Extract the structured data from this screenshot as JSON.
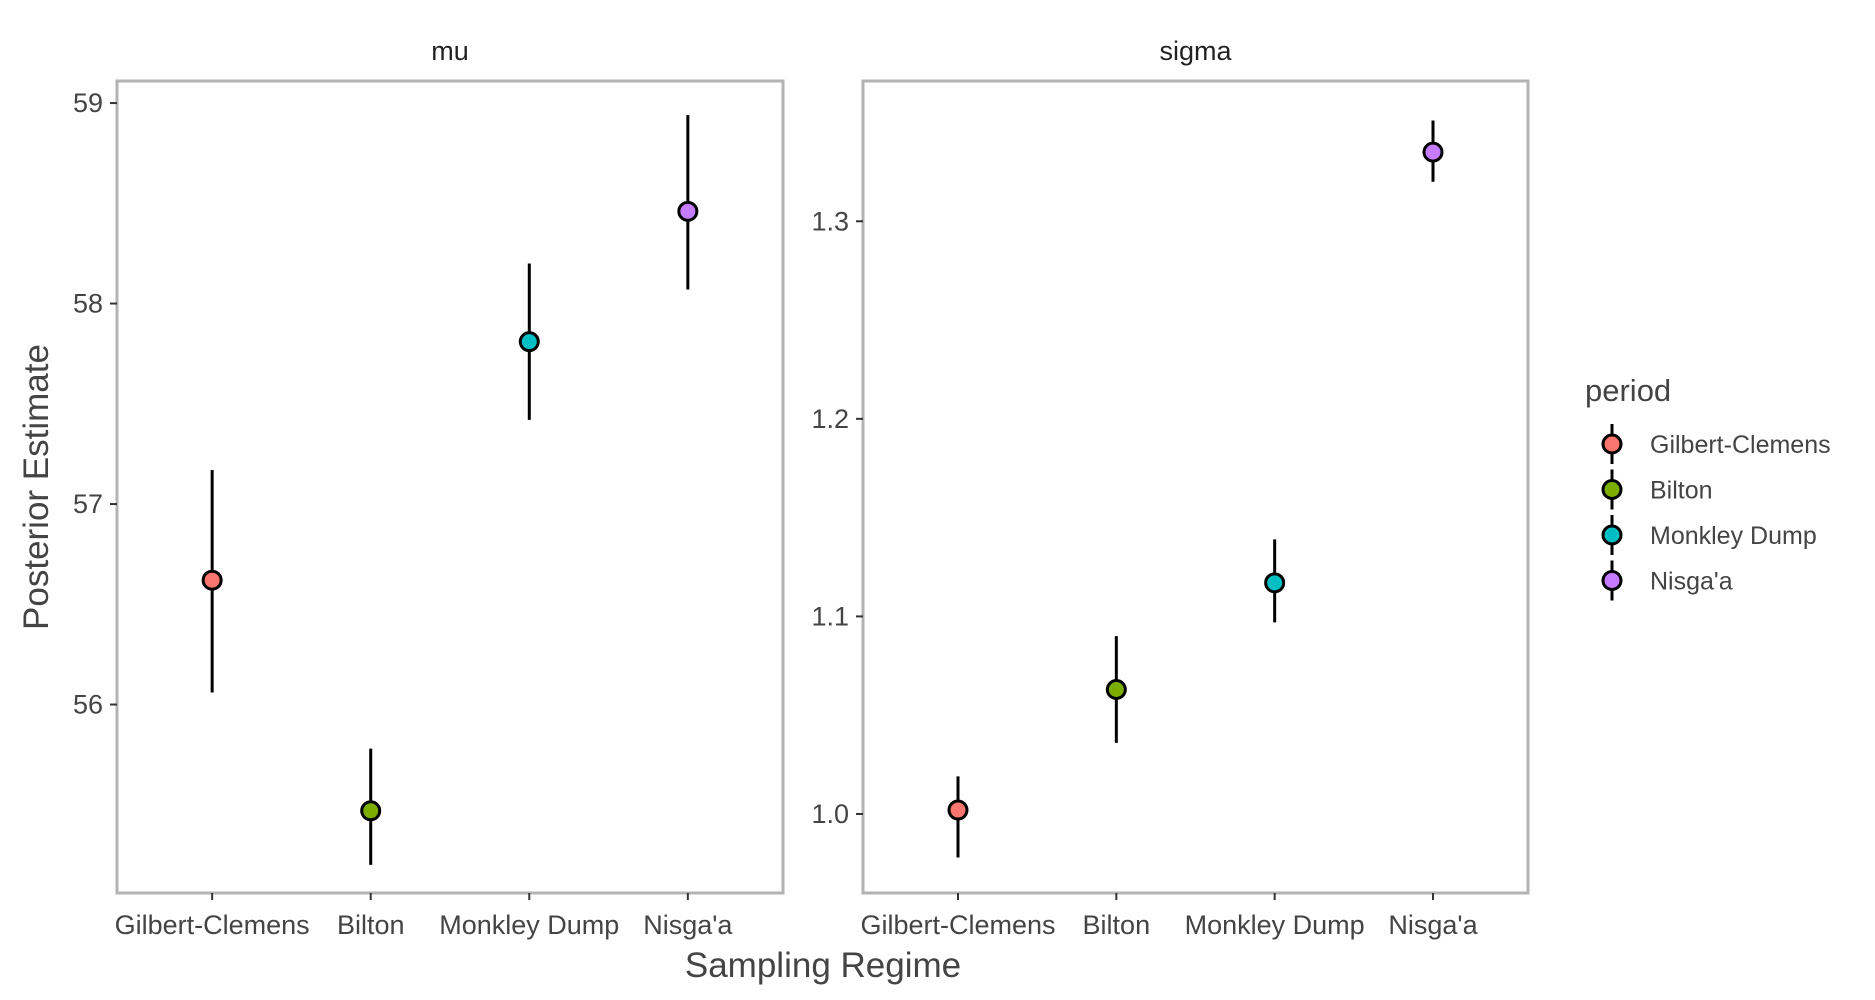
{
  "chart_data": {
    "type": "scatter",
    "xlabel": "Sampling Regime",
    "ylabel": "Posterior Estimate",
    "categories": [
      "Gilbert-Clemens",
      "Bilton",
      "Monkley Dump",
      "Nisga'a"
    ],
    "grid": false,
    "legend": {
      "title": "period",
      "placement": "right",
      "entries": [
        "Gilbert-Clemens",
        "Bilton",
        "Monkley Dump",
        "Nisga'a"
      ]
    },
    "colors": {
      "Gilbert-Clemens": "#F8766D",
      "Bilton": "#7CAE00",
      "Monkley Dump": "#00BFC4",
      "Nisga'a": "#C77CFF"
    },
    "panels": [
      {
        "title": "mu",
        "ylim": [
          55.06,
          59.11
        ],
        "yticks": [
          56,
          57,
          58,
          59
        ],
        "tick_labels": [
          "56",
          "57",
          "58",
          "59"
        ],
        "points": [
          {
            "category": "Gilbert-Clemens",
            "estimate": 56.62,
            "lower": 56.06,
            "upper": 57.17
          },
          {
            "category": "Bilton",
            "estimate": 55.47,
            "lower": 55.2,
            "upper": 55.78
          },
          {
            "category": "Monkley Dump",
            "estimate": 57.81,
            "lower": 57.42,
            "upper": 58.2
          },
          {
            "category": "Nisga'a",
            "estimate": 58.46,
            "lower": 58.07,
            "upper": 58.94
          }
        ]
      },
      {
        "title": "sigma",
        "ylim": [
          0.96,
          1.371
        ],
        "yticks": [
          1.0,
          1.1,
          1.2,
          1.3
        ],
        "tick_labels": [
          "1.0",
          "1.1",
          "1.2",
          "1.3"
        ],
        "points": [
          {
            "category": "Gilbert-Clemens",
            "estimate": 1.002,
            "lower": 0.978,
            "upper": 1.019
          },
          {
            "category": "Bilton",
            "estimate": 1.063,
            "lower": 1.036,
            "upper": 1.09
          },
          {
            "category": "Monkley Dump",
            "estimate": 1.117,
            "lower": 1.097,
            "upper": 1.139
          },
          {
            "category": "Nisga'a",
            "estimate": 1.335,
            "lower": 1.32,
            "upper": 1.351
          }
        ]
      }
    ]
  }
}
